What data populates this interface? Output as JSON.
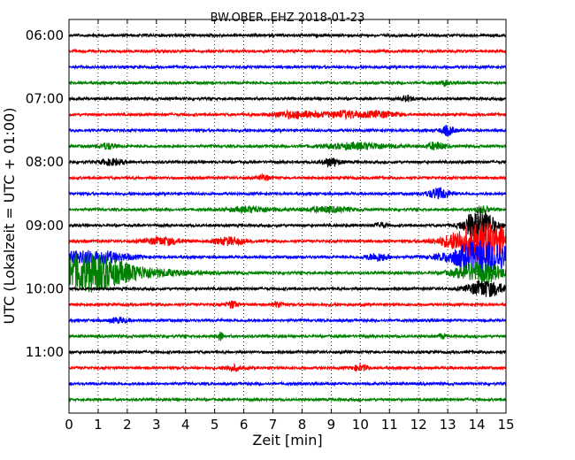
{
  "chart_data": {
    "type": "line",
    "subtype": "seismogram-dayplot",
    "title": "BW.OBER..EHZ 2018-01-23",
    "xlabel": "Zeit  [min]",
    "ylabel": "UTC (Lokalzeit = UTC + 01:00)",
    "xlim": [
      0,
      15
    ],
    "x_ticks": [
      "0",
      "1",
      "2",
      "3",
      "4",
      "5",
      "6",
      "7",
      "8",
      "9",
      "10",
      "11",
      "12",
      "13",
      "14",
      "15"
    ],
    "y_tick_labels": [
      "06:00",
      "07:00",
      "08:00",
      "09:00",
      "10:00",
      "11:00"
    ],
    "grid": "vertical dotted lines at each minute",
    "legend": "none",
    "trace_interval_min": 15,
    "series_colors": [
      "#000000",
      "#ff0000",
      "#0000ff",
      "#008000"
    ],
    "series": [
      {
        "start": "06:00",
        "bursts": []
      },
      {
        "start": "06:15",
        "bursts": []
      },
      {
        "start": "06:30",
        "bursts": []
      },
      {
        "start": "06:45",
        "bursts": [
          {
            "t": 12.9,
            "amp": 0.3,
            "w": 0.15
          }
        ]
      },
      {
        "start": "07:00",
        "bursts": [
          {
            "t": 11.6,
            "amp": 0.35,
            "w": 0.2
          }
        ]
      },
      {
        "start": "07:15",
        "bursts": [
          {
            "t": 7.8,
            "amp": 0.45,
            "w": 0.9
          },
          {
            "t": 9.5,
            "amp": 0.45,
            "w": 0.6
          },
          {
            "t": 10.7,
            "amp": 0.4,
            "w": 0.6
          }
        ]
      },
      {
        "start": "07:30",
        "bursts": [
          {
            "t": 13.0,
            "amp": 0.6,
            "w": 0.25
          }
        ]
      },
      {
        "start": "07:45",
        "bursts": [
          {
            "t": 1.3,
            "amp": 0.4,
            "w": 0.3
          },
          {
            "t": 10.0,
            "amp": 0.4,
            "w": 1.2
          },
          {
            "t": 12.6,
            "amp": 0.5,
            "w": 0.3
          }
        ]
      },
      {
        "start": "08:00",
        "bursts": [
          {
            "t": 1.5,
            "amp": 0.4,
            "w": 0.4
          },
          {
            "t": 9.0,
            "amp": 0.55,
            "w": 0.3
          }
        ]
      },
      {
        "start": "08:15",
        "bursts": [
          {
            "t": 6.7,
            "amp": 0.35,
            "w": 0.2
          }
        ]
      },
      {
        "start": "08:30",
        "bursts": [
          {
            "t": 12.7,
            "amp": 0.7,
            "w": 0.4
          }
        ]
      },
      {
        "start": "08:45",
        "bursts": [
          {
            "t": 6.3,
            "amp": 0.35,
            "w": 0.8
          },
          {
            "t": 8.9,
            "amp": 0.35,
            "w": 0.8
          },
          {
            "t": 14.2,
            "amp": 0.4,
            "w": 0.3
          }
        ]
      },
      {
        "start": "09:00",
        "bursts": [
          {
            "t": 14.1,
            "amp": 2.4,
            "w": 0.5
          },
          {
            "t": 10.7,
            "amp": 0.35,
            "w": 0.2
          }
        ]
      },
      {
        "start": "09:15",
        "bursts": [
          {
            "t": 3.2,
            "amp": 0.5,
            "w": 0.6
          },
          {
            "t": 5.5,
            "amp": 0.5,
            "w": 0.5
          },
          {
            "t": 14.2,
            "amp": 2.6,
            "w": 1.1
          }
        ]
      },
      {
        "start": "09:30",
        "bursts": [
          {
            "t": 0.8,
            "amp": 0.9,
            "w": 1.2
          },
          {
            "t": 10.6,
            "amp": 0.5,
            "w": 0.4
          },
          {
            "t": 14.2,
            "amp": 2.2,
            "w": 1.1
          }
        ]
      },
      {
        "start": "09:45",
        "bursts": [
          {
            "t": 0.45,
            "amp": 2.2,
            "w": 1.4
          },
          {
            "t": 2.0,
            "amp": 0.6,
            "w": 2.0
          },
          {
            "t": 14.1,
            "amp": 1.4,
            "w": 0.8
          }
        ]
      },
      {
        "start": "10:00",
        "bursts": [
          {
            "t": 14.3,
            "amp": 1.1,
            "w": 0.6
          }
        ]
      },
      {
        "start": "10:15",
        "bursts": [
          {
            "t": 5.6,
            "amp": 0.45,
            "w": 0.2
          },
          {
            "t": 7.2,
            "amp": 0.35,
            "w": 0.2
          }
        ]
      },
      {
        "start": "10:30",
        "bursts": [
          {
            "t": 1.7,
            "amp": 0.35,
            "w": 0.3
          }
        ]
      },
      {
        "start": "10:45",
        "bursts": [
          {
            "t": 5.2,
            "amp": 0.55,
            "w": 0.1
          },
          {
            "t": 12.8,
            "amp": 0.3,
            "w": 0.1
          }
        ]
      },
      {
        "start": "11:00",
        "bursts": []
      },
      {
        "start": "11:15",
        "bursts": [
          {
            "t": 5.6,
            "amp": 0.35,
            "w": 0.3
          },
          {
            "t": 10.0,
            "amp": 0.35,
            "w": 0.3
          }
        ]
      },
      {
        "start": "11:30",
        "bursts": []
      },
      {
        "start": "11:45",
        "bursts": []
      }
    ]
  }
}
